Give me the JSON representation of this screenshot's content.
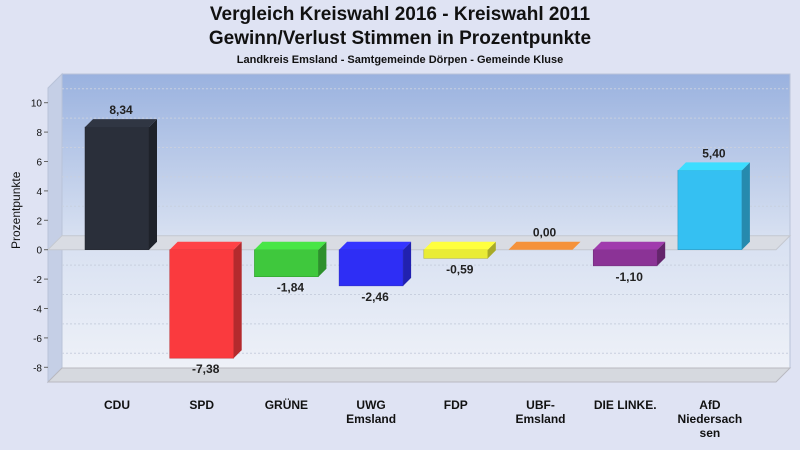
{
  "chart_data": {
    "type": "bar",
    "title": "Vergleich Kreiswahl 2016 - Kreiswahl 2011",
    "title_line2": "Gewinn/Verlust Stimmen in Prozentpunkte",
    "subtitle": "Landkreis Emsland - Samtgemeinde Dörpen - Gemeinde Kluse",
    "ylabel": "Prozentpunkte",
    "ylim": [
      -9,
      11
    ],
    "yticks": [
      10,
      8,
      6,
      4,
      2,
      0,
      -2,
      -4,
      -6,
      -8
    ],
    "categories": [
      "CDU",
      "SPD",
      "GRÜNE",
      "UWG Emsland",
      "FDP",
      "UBF-Emsland",
      "DIE LINKE.",
      "AfD Niedersachsen"
    ],
    "category_lines": [
      [
        "CDU"
      ],
      [
        "SPD"
      ],
      [
        "GRÜNE"
      ],
      [
        "UWG",
        "Emsland"
      ],
      [
        "FDP"
      ],
      [
        "UBF-",
        "Emsland"
      ],
      [
        "DIE LINKE."
      ],
      [
        "AfD",
        "Niedersach",
        "sen"
      ]
    ],
    "values": [
      8.34,
      -7.38,
      -1.84,
      -2.46,
      -0.59,
      0.0,
      -1.1,
      5.4
    ],
    "value_labels": [
      "8,34",
      "-7,38",
      "-1,84",
      "-2,46",
      "-0,59",
      "0,00",
      "-1,10",
      "5,40"
    ],
    "colors": [
      "#2a2f3a",
      "#fa3a3e",
      "#3fc83d",
      "#2e2ef5",
      "#e9ec36",
      "#f5923a",
      "#8b3396",
      "#35c0f2"
    ],
    "grid": true,
    "legend": "none"
  }
}
